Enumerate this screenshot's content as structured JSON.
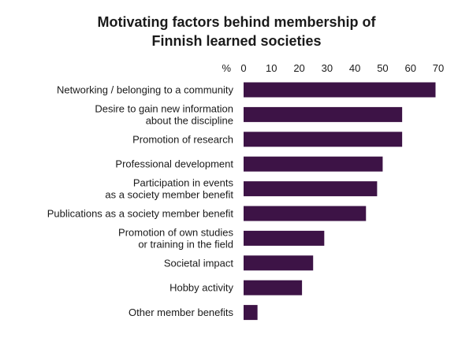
{
  "chart_data": {
    "type": "bar",
    "orientation": "horizontal",
    "title_lines": [
      "Motivating factors behind membership of",
      "Finnish learned societies"
    ],
    "unit_label": "%",
    "xlim": [
      0,
      70
    ],
    "xticks": [
      "0",
      "10",
      "20",
      "30",
      "40",
      "50",
      "60",
      "70"
    ],
    "grid": false,
    "bar_color": "#3d1346",
    "categories": [
      [
        "Networking / belonging to a community"
      ],
      [
        "Desire to gain new information",
        "about the discipline"
      ],
      [
        "Promotion of research"
      ],
      [
        "Professional development"
      ],
      [
        "Participation in events",
        "as a society member benefit"
      ],
      [
        "Publications as a society member benefit"
      ],
      [
        "Promotion of own studies",
        "or training in the field"
      ],
      [
        "Societal impact"
      ],
      [
        "Hobby activity"
      ],
      [
        "Other member benefits"
      ]
    ],
    "values": [
      69,
      57,
      57,
      50,
      48,
      44,
      29,
      25,
      21,
      5
    ]
  }
}
